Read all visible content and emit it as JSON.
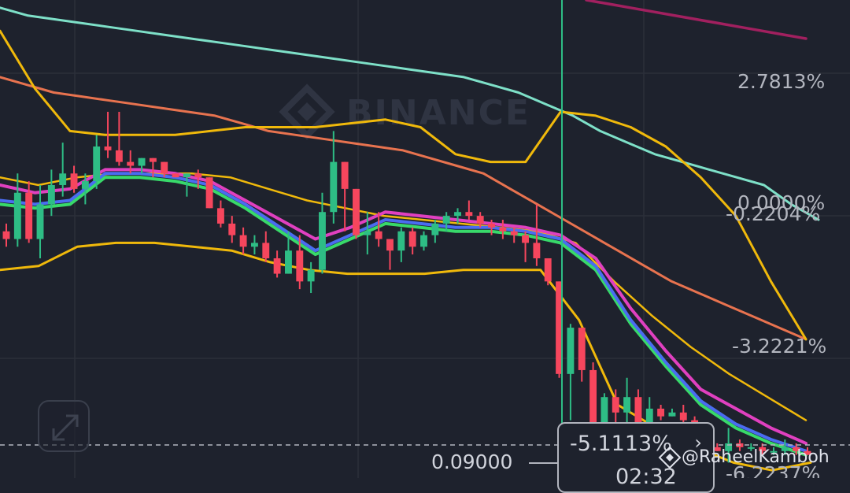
{
  "watermark": "BINANCE",
  "price_labels": [
    "2.7813%",
    "0.0000%",
    "-0.2204%",
    "-3.2221%",
    "-6.2237%"
  ],
  "tooltip": {
    "change": "-5.1113%",
    "time": "02:32",
    "arrow": "›"
  },
  "cursor_price": "0.09000",
  "credit": "@RaheelKamboh",
  "colors": {
    "background": "#1e222d",
    "grid": "#2b2f3a",
    "bull": "#2ebd85",
    "bear": "#f6465d",
    "ma_teal": "#7ee0c8",
    "ma_orange": "#e8734f",
    "ma_purple": "#a1205f",
    "bollinger": "#f0b90b",
    "ema_pink": "#e040c0",
    "ema_blue": "#4a6cf0",
    "ema_green": "#38d96a",
    "crosshair": "#2ebd85"
  },
  "chart_data": {
    "type": "candlestick",
    "price_axis_percent_ticks": [
      2.7813,
      0.0,
      -0.2204,
      -3.2221,
      -6.2237
    ],
    "ylim_percent": [
      -6.6,
      5.8
    ],
    "candles": [
      {
        "o": -0.2,
        "h": 0.0,
        "l": -0.6,
        "c": -0.4
      },
      {
        "o": -0.4,
        "h": 1.3,
        "l": -0.6,
        "c": 0.8
      },
      {
        "o": 0.8,
        "h": 1.1,
        "l": -0.5,
        "c": -0.4
      },
      {
        "o": -0.4,
        "h": 1.0,
        "l": -0.9,
        "c": 0.5
      },
      {
        "o": 0.5,
        "h": 1.4,
        "l": 0.2,
        "c": 1.0
      },
      {
        "o": 1.0,
        "h": 2.1,
        "l": 0.7,
        "c": 1.3
      },
      {
        "o": 1.3,
        "h": 1.5,
        "l": 0.8,
        "c": 0.9
      },
      {
        "o": 0.9,
        "h": 1.3,
        "l": 0.5,
        "c": 1.1
      },
      {
        "o": 1.1,
        "h": 2.3,
        "l": 0.9,
        "c": 2.0
      },
      {
        "o": 2.0,
        "h": 2.9,
        "l": 1.7,
        "c": 1.9
      },
      {
        "o": 1.9,
        "h": 2.9,
        "l": 1.5,
        "c": 1.6
      },
      {
        "o": 1.6,
        "h": 1.9,
        "l": 1.3,
        "c": 1.5
      },
      {
        "o": 1.5,
        "h": 1.7,
        "l": 1.3,
        "c": 1.7
      },
      {
        "o": 1.7,
        "h": 1.7,
        "l": 1.2,
        "c": 1.6
      },
      {
        "o": 1.6,
        "h": 1.6,
        "l": 1.2,
        "c": 1.3
      },
      {
        "o": 1.3,
        "h": 1.3,
        "l": 1.2,
        "c": 1.2
      },
      {
        "o": 1.2,
        "h": 1.3,
        "l": 0.7,
        "c": 1.3
      },
      {
        "o": 1.3,
        "h": 1.4,
        "l": 0.9,
        "c": 1.2
      },
      {
        "o": 1.2,
        "h": 1.2,
        "l": 0.4,
        "c": 0.4
      },
      {
        "o": 0.4,
        "h": 0.6,
        "l": -0.1,
        "c": 0.0
      },
      {
        "o": 0.0,
        "h": 0.2,
        "l": -0.5,
        "c": -0.3
      },
      {
        "o": -0.3,
        "h": -0.1,
        "l": -0.8,
        "c": -0.6
      },
      {
        "o": -0.6,
        "h": -0.3,
        "l": -0.8,
        "c": -0.5
      },
      {
        "o": -0.5,
        "h": -0.2,
        "l": -1.0,
        "c": -0.9
      },
      {
        "o": -0.9,
        "h": -0.7,
        "l": -1.4,
        "c": -1.3
      },
      {
        "o": -1.3,
        "h": -0.2,
        "l": -1.3,
        "c": -0.7
      },
      {
        "o": -0.7,
        "h": -0.3,
        "l": -1.7,
        "c": -1.5
      },
      {
        "o": -1.5,
        "h": -1.0,
        "l": -1.8,
        "c": -1.2
      },
      {
        "o": -1.2,
        "h": 0.8,
        "l": -1.3,
        "c": 0.3
      },
      {
        "o": 0.3,
        "h": 2.4,
        "l": 0.0,
        "c": 1.6
      },
      {
        "o": 1.6,
        "h": 1.6,
        "l": -0.2,
        "c": 0.9
      },
      {
        "o": 0.9,
        "h": 0.9,
        "l": -0.4,
        "c": -0.3
      },
      {
        "o": -0.3,
        "h": 0.3,
        "l": -0.8,
        "c": -0.2
      },
      {
        "o": -0.2,
        "h": 0.3,
        "l": -0.6,
        "c": -0.4
      },
      {
        "o": -0.4,
        "h": -0.4,
        "l": -1.2,
        "c": -0.7
      },
      {
        "o": -0.7,
        "h": -0.1,
        "l": -1.0,
        "c": -0.2
      },
      {
        "o": -0.2,
        "h": -0.1,
        "l": -0.8,
        "c": -0.6
      },
      {
        "o": -0.6,
        "h": -0.2,
        "l": -0.7,
        "c": -0.3
      },
      {
        "o": -0.3,
        "h": 0.1,
        "l": -0.5,
        "c": 0.0
      },
      {
        "o": 0.0,
        "h": 0.3,
        "l": -0.2,
        "c": 0.2
      },
      {
        "o": 0.2,
        "h": 0.4,
        "l": 0.0,
        "c": 0.3
      },
      {
        "o": 0.3,
        "h": 0.6,
        "l": 0.1,
        "c": 0.2
      },
      {
        "o": 0.2,
        "h": 0.3,
        "l": -0.1,
        "c": 0.0
      },
      {
        "o": 0.0,
        "h": 0.1,
        "l": -0.3,
        "c": -0.1
      },
      {
        "o": -0.1,
        "h": 0.1,
        "l": -0.4,
        "c": -0.2
      },
      {
        "o": -0.2,
        "h": -0.1,
        "l": -0.5,
        "c": -0.3
      },
      {
        "o": -0.3,
        "h": -0.2,
        "l": -1.0,
        "c": -0.5
      },
      {
        "o": -0.5,
        "h": 0.5,
        "l": -1.1,
        "c": -0.9
      },
      {
        "o": -0.9,
        "h": -0.9,
        "l": -1.6,
        "c": -1.5
      },
      {
        "o": -1.5,
        "h": -1.5,
        "l": -4.0,
        "c": -3.9
      },
      {
        "o": -3.9,
        "h": -2.6,
        "l": -5.1,
        "c": -2.7
      },
      {
        "o": -2.7,
        "h": -2.7,
        "l": -4.1,
        "c": -3.8
      },
      {
        "o": -3.8,
        "h": -3.6,
        "l": -5.8,
        "c": -5.2
      },
      {
        "o": -5.2,
        "h": -4.4,
        "l": -5.3,
        "c": -4.5
      },
      {
        "o": -4.5,
        "h": -4.3,
        "l": -5.5,
        "c": -4.9
      },
      {
        "o": -4.9,
        "h": -4.0,
        "l": -5.6,
        "c": -4.5
      },
      {
        "o": -4.5,
        "h": -4.3,
        "l": -5.4,
        "c": -5.2
      },
      {
        "o": -5.2,
        "h": -4.5,
        "l": -5.2,
        "c": -4.8
      },
      {
        "o": -4.8,
        "h": -4.7,
        "l": -5.1,
        "c": -5.0
      },
      {
        "o": -5.0,
        "h": -4.8,
        "l": -5.0,
        "c": -4.9
      },
      {
        "o": -4.9,
        "h": -4.7,
        "l": -5.2,
        "c": -5.1
      },
      {
        "o": -5.1,
        "h": -5.0,
        "l": -5.4,
        "c": -5.4
      },
      {
        "o": -5.4,
        "h": -5.3,
        "l": -5.8,
        "c": -5.8
      },
      {
        "o": -5.8,
        "h": -5.7,
        "l": -5.9,
        "c": -5.9
      },
      {
        "o": -5.9,
        "h": -5.3,
        "l": -6.2,
        "c": -5.7
      },
      {
        "o": -5.7,
        "h": -5.6,
        "l": -5.9,
        "c": -5.8
      },
      {
        "o": -5.8,
        "h": -5.7,
        "l": -5.9,
        "c": -5.8
      },
      {
        "o": -5.8,
        "h": -5.7,
        "l": -6.0,
        "c": -5.9
      },
      {
        "o": -5.9,
        "h": -5.8,
        "l": -6.0,
        "c": -5.9
      },
      {
        "o": -5.9,
        "h": -5.6,
        "l": -6.0,
        "c": -5.8
      },
      {
        "o": -5.8,
        "h": -5.7,
        "l": -6.0,
        "c": -5.9
      },
      {
        "o": -5.9,
        "h": -5.8,
        "l": -6.0,
        "c": -6.0
      }
    ],
    "lines": {
      "ma_teal": [
        5.6,
        5.4,
        5.3,
        5.2,
        5.1,
        5.0,
        4.9,
        4.8,
        4.7,
        4.6,
        4.5,
        4.4,
        4.3,
        4.2,
        4.1,
        4.0,
        3.9,
        3.8,
        3.6,
        3.4,
        3.1,
        2.8,
        2.4,
        2.1,
        1.8,
        1.6,
        1.4,
        1.2,
        1.0,
        0.5,
        0.1
      ],
      "ma_orange": [
        3.8,
        3.6,
        3.4,
        3.3,
        3.2,
        3.1,
        3.0,
        2.9,
        2.8,
        2.6,
        2.4,
        2.3,
        2.2,
        2.1,
        2.0,
        1.9,
        1.7,
        1.5,
        1.3,
        0.9,
        0.5,
        0.1,
        -0.3,
        -0.7,
        -1.1,
        -1.5,
        -1.8,
        -2.1,
        -2.4,
        -2.7,
        -3.0
      ],
      "ma_purple": [
        5.8,
        5.7,
        5.6,
        5.5,
        5.4,
        5.3,
        5.2,
        5.1,
        5.0,
        4.9,
        4.8
      ],
      "boll_upper": [
        5.0,
        3.5,
        2.4,
        2.3,
        2.3,
        2.3,
        2.4,
        2.5,
        2.5,
        2.5,
        2.6,
        2.7,
        2.5,
        1.8,
        1.6,
        1.6,
        2.9,
        2.8,
        2.5,
        2.0,
        1.2,
        0.2,
        -1.5,
        -3.0
      ],
      "boll_mid": [
        1.2,
        1.0,
        1.2,
        1.3,
        1.3,
        1.3,
        1.2,
        0.9,
        0.6,
        0.4,
        0.2,
        0.1,
        0.0,
        -0.1,
        -0.2,
        -0.5,
        -1.5,
        -2.4,
        -3.2,
        -3.9,
        -4.5,
        -5.1
      ],
      "boll_lower": [
        -1.2,
        -1.1,
        -0.6,
        -0.5,
        -0.5,
        -0.6,
        -0.7,
        -1.0,
        -1.2,
        -1.3,
        -1.3,
        -1.3,
        -1.2,
        -1.2,
        -1.2,
        -2.5,
        -4.7,
        -5.3,
        -5.8,
        -6.2,
        -6.4,
        -6.2
      ],
      "ema_pink": [
        1.0,
        0.8,
        0.9,
        1.4,
        1.4,
        1.3,
        1.1,
        0.6,
        0.1,
        -0.4,
        -0.1,
        0.3,
        0.2,
        0.1,
        0.0,
        -0.1,
        -0.3,
        -0.9,
        -2.2,
        -3.3,
        -4.3,
        -4.8,
        -5.3,
        -5.7
      ],
      "ema_blue": [
        0.6,
        0.5,
        0.6,
        1.3,
        1.3,
        1.2,
        1.0,
        0.5,
        -0.1,
        -0.7,
        -0.3,
        0.1,
        0.0,
        -0.1,
        -0.1,
        -0.2,
        -0.4,
        -1.1,
        -2.5,
        -3.6,
        -4.6,
        -5.2,
        -5.6,
        -5.9
      ],
      "ema_green": [
        0.5,
        0.4,
        0.5,
        1.2,
        1.2,
        1.1,
        0.9,
        0.4,
        -0.2,
        -0.8,
        -0.4,
        0.0,
        -0.1,
        -0.2,
        -0.2,
        -0.3,
        -0.5,
        -1.2,
        -2.6,
        -3.7,
        -4.7,
        -5.3,
        -5.7,
        -6.0
      ]
    }
  }
}
